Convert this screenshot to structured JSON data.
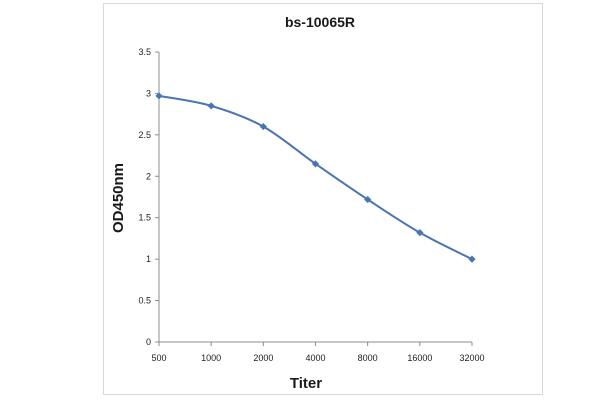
{
  "chart_data": {
    "type": "line",
    "title": "bs-10065R",
    "xlabel": "Titer",
    "ylabel": "OD450nm",
    "categories": [
      "500",
      "1000",
      "2000",
      "4000",
      "8000",
      "16000",
      "32000"
    ],
    "series": [
      {
        "values": [
          2.97,
          2.85,
          2.6,
          2.15,
          1.72,
          1.32,
          1.0
        ]
      }
    ],
    "yticks": [
      "0",
      "0.5",
      "1",
      "1.5",
      "2",
      "2.5",
      "3",
      "3.5"
    ],
    "ylim": [
      0,
      3.5
    ],
    "grid": false,
    "legend": "none",
    "colors": {
      "line": "#4a74b4",
      "marker": "#4a74b4",
      "axis": "#8c8c8c"
    }
  }
}
